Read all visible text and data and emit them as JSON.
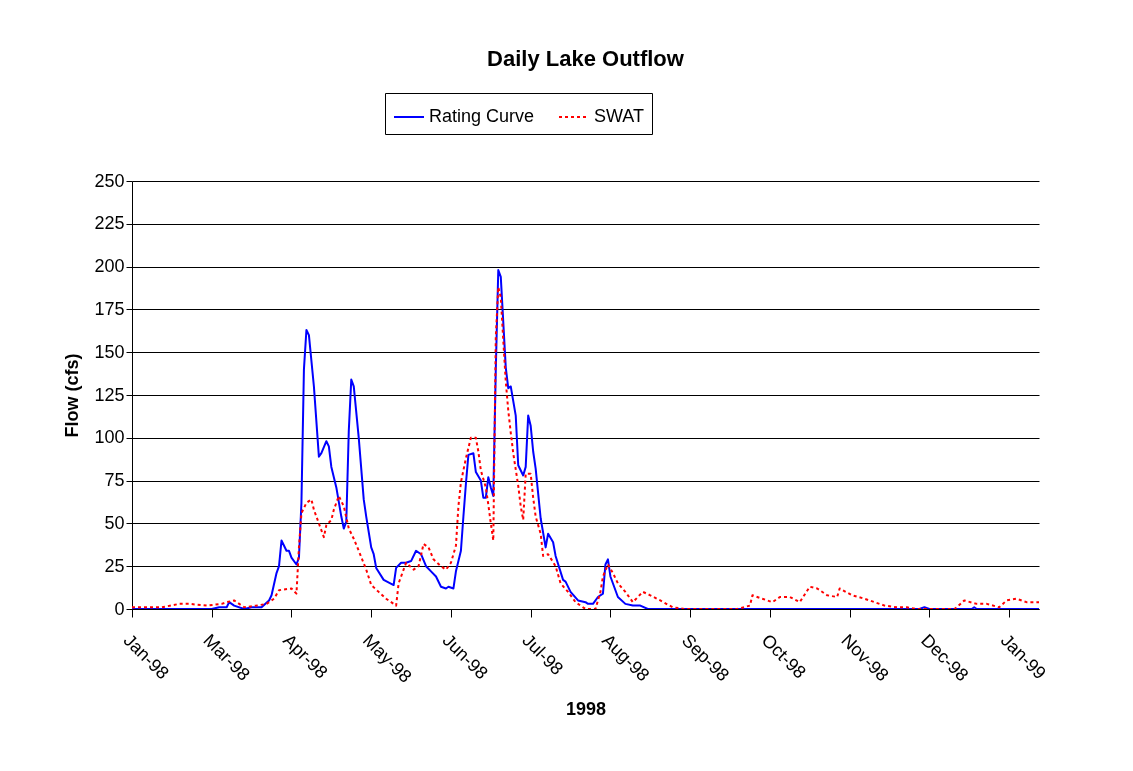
{
  "chart_data": {
    "type": "line",
    "title": "Daily Lake Outflow",
    "xlabel": "1998",
    "ylabel": "Flow (cfs)",
    "xlim": [
      "1998-01-29",
      "1999-01-28"
    ],
    "xticks": [
      {
        "value": "1998-01-29",
        "label": "Jan-98"
      },
      {
        "value": "1998-03-02",
        "label": "Mar-98"
      },
      {
        "value": "1998-04-03",
        "label": "Apr-98"
      },
      {
        "value": "1998-05-05",
        "label": "May-98"
      },
      {
        "value": "1998-06-06",
        "label": "Jun-98"
      },
      {
        "value": "1998-07-08",
        "label": "Jul-98"
      },
      {
        "value": "1998-08-09",
        "label": "Aug-98"
      },
      {
        "value": "1998-09-10",
        "label": "Sep-98"
      },
      {
        "value": "1998-10-12",
        "label": "Oct-98"
      },
      {
        "value": "1998-11-13",
        "label": "Nov-98"
      },
      {
        "value": "1998-12-15",
        "label": "Dec-98"
      },
      {
        "value": "1999-01-16",
        "label": "Jan-99"
      }
    ],
    "ylim": [
      0,
      250
    ],
    "yticks": [
      0,
      25,
      50,
      75,
      100,
      125,
      150,
      175,
      200,
      225,
      250
    ],
    "grid": "y",
    "legend": "top",
    "marker": "none",
    "series": [
      {
        "name": "Rating Curve",
        "color": "#0000ff",
        "line_style": "solid",
        "x": [
          "1998-01-29",
          "1998-03-02",
          "1998-03-05",
          "1998-03-08",
          "1998-03-09",
          "1998-03-11",
          "1998-03-15",
          "1998-03-18",
          "1998-03-22",
          "1998-03-25",
          "1998-03-26",
          "1998-03-28",
          "1998-03-29",
          "1998-03-30",
          "1998-04-01",
          "1998-04-02",
          "1998-04-03",
          "1998-04-05",
          "1998-04-06",
          "1998-04-07",
          "1998-04-08",
          "1998-04-09",
          "1998-04-10",
          "1998-04-12",
          "1998-04-14",
          "1998-04-15",
          "1998-04-17",
          "1998-04-18",
          "1998-04-19",
          "1998-04-21",
          "1998-04-23",
          "1998-04-24",
          "1998-04-25",
          "1998-04-26",
          "1998-04-27",
          "1998-04-28",
          "1998-04-30",
          "1998-05-02",
          "1998-05-03",
          "1998-05-05",
          "1998-05-06",
          "1998-05-07",
          "1998-05-10",
          "1998-05-14",
          "1998-05-15",
          "1998-05-17",
          "1998-05-19",
          "1998-05-21",
          "1998-05-23",
          "1998-05-25",
          "1998-05-27",
          "1998-05-29",
          "1998-05-31",
          "1998-06-02",
          "1998-06-04",
          "1998-06-05",
          "1998-06-07",
          "1998-06-08",
          "1998-06-10",
          "1998-06-11",
          "1998-06-12",
          "1998-06-13",
          "1998-06-15",
          "1998-06-16",
          "1998-06-18",
          "1998-06-19",
          "1998-06-20",
          "1998-06-21",
          "1998-06-22",
          "1998-06-23",
          "1998-06-24",
          "1998-06-25",
          "1998-06-26",
          "1998-06-28",
          "1998-06-29",
          "1998-06-30",
          "1998-07-02",
          "1998-07-03",
          "1998-07-05",
          "1998-07-06",
          "1998-07-07",
          "1998-07-08",
          "1998-07-09",
          "1998-07-10",
          "1998-07-12",
          "1998-07-14",
          "1998-07-15",
          "1998-07-17",
          "1998-07-18",
          "1998-07-21",
          "1998-07-22",
          "1998-07-24",
          "1998-07-27",
          "1998-07-30",
          "1998-07-31",
          "1998-08-02",
          "1998-08-04",
          "1998-08-06",
          "1998-08-07",
          "1998-08-08",
          "1998-08-09",
          "1998-08-12",
          "1998-08-15",
          "1998-08-18",
          "1998-08-20",
          "1998-08-21",
          "1998-08-24",
          "1998-12-11",
          "1998-12-13",
          "1998-12-15",
          "1999-01-01",
          "1999-01-02",
          "1999-01-03",
          "1999-01-28"
        ],
        "values": [
          0,
          0,
          1,
          1,
          4,
          2,
          0,
          1,
          1,
          5,
          8,
          21,
          25,
          40,
          34,
          34,
          30,
          26,
          30,
          62,
          140,
          163,
          160,
          130,
          89,
          91,
          98,
          95,
          83,
          71,
          54,
          47,
          51,
          104,
          134,
          130,
          100,
          64,
          54,
          36,
          32,
          24,
          17,
          14,
          24,
          27,
          27,
          28,
          34,
          32,
          25,
          22,
          19,
          13,
          12,
          13,
          12,
          22,
          34,
          54,
          73,
          90,
          91,
          80,
          75,
          65,
          65,
          77,
          71,
          66,
          140,
          198,
          194,
          141,
          129,
          130,
          113,
          84,
          78,
          83,
          113,
          107,
          92,
          82,
          53,
          36,
          44,
          39,
          31,
          17,
          16,
          10,
          5,
          4,
          3,
          3,
          7,
          9,
          26,
          29,
          19,
          7,
          3,
          2,
          2,
          2,
          0,
          0,
          1,
          0,
          0,
          1,
          0,
          0
        ]
      },
      {
        "name": "SWAT",
        "color": "#ff0000",
        "line_style": "dotted",
        "x": [
          "1998-01-29",
          "1998-02-03",
          "1998-02-10",
          "1998-02-17",
          "1998-02-21",
          "1998-02-28",
          "1998-03-06",
          "1998-03-08",
          "1998-03-11",
          "1998-03-15",
          "1998-03-20",
          "1998-03-24",
          "1998-03-27",
          "1998-03-29",
          "1998-04-03",
          "1998-04-05",
          "1998-04-06",
          "1998-04-07",
          "1998-04-09",
          "1998-04-11",
          "1998-04-12",
          "1998-04-14",
          "1998-04-16",
          "1998-04-17",
          "1998-04-19",
          "1998-04-20",
          "1998-04-22",
          "1998-04-24",
          "1998-04-26",
          "1998-04-28",
          "1998-04-30",
          "1998-05-03",
          "1998-05-05",
          "1998-05-08",
          "1998-05-11",
          "1998-05-15",
          "1998-05-16",
          "1998-05-19",
          "1998-05-22",
          "1998-05-24",
          "1998-05-26",
          "1998-05-28",
          "1998-05-30",
          "1998-06-02",
          "1998-06-04",
          "1998-06-06",
          "1998-06-08",
          "1998-06-09",
          "1998-06-10",
          "1998-06-12",
          "1998-06-14",
          "1998-06-16",
          "1998-06-17",
          "1998-06-18",
          "1998-06-20",
          "1998-06-21",
          "1998-06-22",
          "1998-06-23",
          "1998-06-24",
          "1998-06-25",
          "1998-06-26",
          "1998-06-27",
          "1998-06-28",
          "1998-06-29",
          "1998-06-30",
          "1998-07-01",
          "1998-07-03",
          "1998-07-04",
          "1998-07-05",
          "1998-07-06",
          "1998-07-08",
          "1998-07-09",
          "1998-07-10",
          "1998-07-12",
          "1998-07-13",
          "1998-07-15",
          "1998-07-18",
          "1998-07-20",
          "1998-07-23",
          "1998-07-26",
          "1998-07-30",
          "1998-08-03",
          "1998-08-05",
          "1998-08-06",
          "1998-08-08",
          "1998-08-10",
          "1998-08-12",
          "1998-08-15",
          "1998-08-18",
          "1998-08-22",
          "1998-08-25",
          "1998-08-29",
          "1998-09-03",
          "1998-09-08",
          "1998-09-29",
          "1998-10-04",
          "1998-10-05",
          "1998-10-09",
          "1998-10-13",
          "1998-10-16",
          "1998-10-20",
          "1998-10-24",
          "1998-10-28",
          "1998-10-31",
          "1998-11-04",
          "1998-11-08",
          "1998-11-09",
          "1998-11-14",
          "1998-11-19",
          "1998-11-23",
          "1998-11-27",
          "1998-12-02",
          "1998-12-06",
          "1998-12-10",
          "1998-12-25",
          "1998-12-26",
          "1998-12-29",
          "1999-01-03",
          "1999-01-07",
          "1999-01-12",
          "1999-01-15",
          "1999-01-19",
          "1999-01-23",
          "1999-01-28"
        ],
        "values": [
          1,
          1,
          1,
          3,
          3,
          2,
          3,
          4,
          5,
          1,
          2,
          3,
          6,
          11,
          12,
          9,
          36,
          56,
          62,
          64,
          58,
          50,
          42,
          49,
          52,
          58,
          66,
          60,
          47,
          41,
          34,
          23,
          14,
          10,
          6,
          2,
          15,
          27,
          23,
          25,
          38,
          36,
          29,
          25,
          23,
          27,
          37,
          60,
          74,
          88,
          100,
          100,
          92,
          81,
          71,
          61,
          50,
          40,
          159,
          188,
          182,
          157,
          133,
          116,
          103,
          91,
          72,
          60,
          52,
          79,
          79,
          65,
          54,
          44,
          31,
          32,
          25,
          15,
          10,
          4,
          0,
          0,
          10,
          19,
          26,
          21,
          15,
          10,
          4,
          10,
          8,
          5,
          1,
          0,
          0,
          2,
          8,
          6,
          4,
          7,
          7,
          4,
          13,
          12,
          8,
          7,
          12,
          8,
          6,
          4,
          2,
          1,
          1,
          0,
          0,
          1,
          5,
          3,
          3,
          1,
          5,
          6,
          4,
          4
        ]
      }
    ]
  }
}
